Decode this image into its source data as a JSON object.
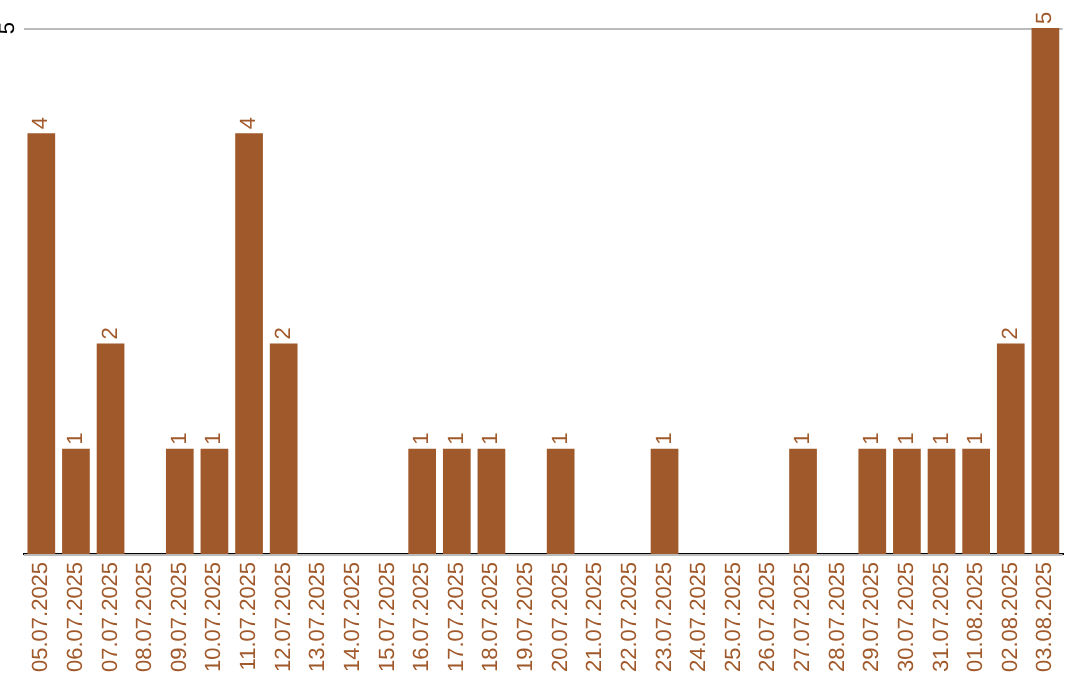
{
  "chart_data": {
    "type": "bar",
    "categories": [
      "05.07.2025",
      "06.07.2025",
      "07.07.2025",
      "08.07.2025",
      "09.07.2025",
      "10.07.2025",
      "11.07.2025",
      "12.07.2025",
      "13.07.2025",
      "14.07.2025",
      "15.07.2025",
      "16.07.2025",
      "17.07.2025",
      "18.07.2025",
      "19.07.2025",
      "20.07.2025",
      "21.07.2025",
      "22.07.2025",
      "23.07.2025",
      "24.07.2025",
      "25.07.2025",
      "26.07.2025",
      "27.07.2025",
      "28.07.2025",
      "29.07.2025",
      "30.07.2025",
      "31.07.2025",
      "01.08.2025",
      "02.08.2025",
      "03.08.2025"
    ],
    "values": [
      4,
      1,
      2,
      0,
      1,
      1,
      4,
      2,
      0,
      0,
      0,
      1,
      1,
      1,
      0,
      1,
      0,
      0,
      1,
      0,
      0,
      0,
      1,
      0,
      1,
      1,
      1,
      1,
      2,
      5
    ],
    "value_labels": [
      "4",
      "1",
      "2",
      null,
      "1",
      "1",
      "4",
      "2",
      null,
      null,
      null,
      "1",
      "1",
      "1",
      null,
      "1",
      null,
      null,
      "1",
      null,
      null,
      null,
      "1",
      null,
      "1",
      "1",
      "1",
      "1",
      "2",
      "5"
    ],
    "color": "#a0592a",
    "ylim": [
      0,
      5
    ],
    "yticks": [
      {
        "value": 0,
        "label": null
      },
      5
    ],
    "grid": "y",
    "legend": false
  }
}
